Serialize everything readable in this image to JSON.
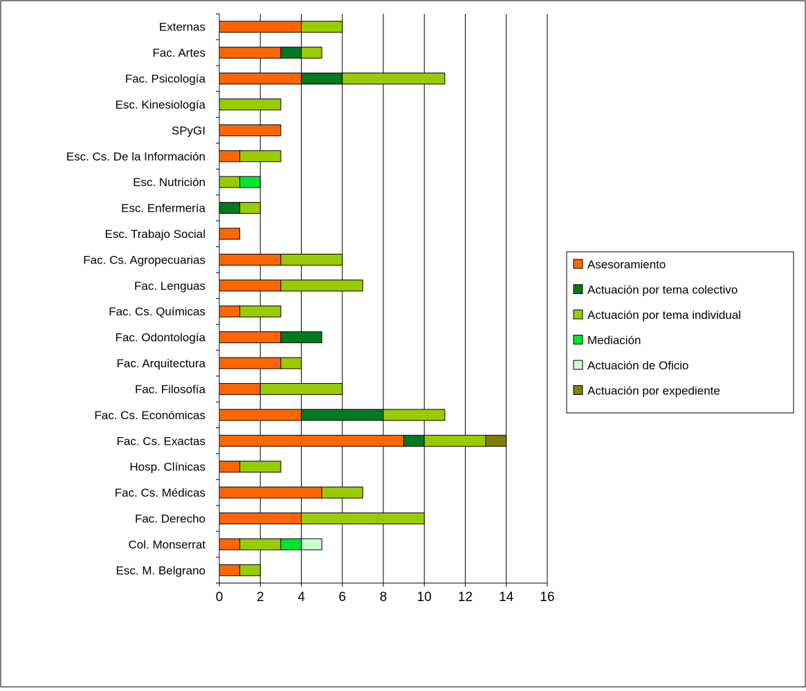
{
  "chart_data": {
    "type": "bar",
    "orientation": "horizontal",
    "stacked": true,
    "title": "",
    "xlabel": "",
    "ylabel": "",
    "xlim": [
      0,
      16
    ],
    "x_ticks": [
      0,
      2,
      4,
      6,
      8,
      10,
      12,
      14,
      16
    ],
    "grid": "vertical-major",
    "legend_position": "right",
    "categories": [
      "Externas",
      "Fac. Artes",
      "Fac. Psicología",
      "Esc. Kinesiología",
      "SPyGI",
      "Esc. Cs. De la Información",
      "Esc. Nutrición",
      "Esc. Enfermería",
      "Esc. Trabajo Social",
      "Fac. Cs. Agropecuarias",
      "Fac. Lenguas",
      "Fac. Cs. Químicas",
      "Fac. Odontología",
      "Fac. Arquitectura",
      "Fac. Filosofía",
      "Fac. Cs. Económicas",
      "Fac. Cs. Exactas",
      "Hosp. Clínicas",
      "Fac. Cs. Médicas",
      "Fac. Derecho",
      "Col. Monserrat",
      "Esc. M. Belgrano"
    ],
    "series": [
      {
        "name": "Asesoramiento",
        "color": "#FF6600",
        "values": [
          4,
          3,
          4,
          0,
          3,
          1,
          0,
          0,
          1,
          3,
          3,
          1,
          3,
          3,
          2,
          4,
          9,
          1,
          5,
          4,
          1,
          1
        ]
      },
      {
        "name": "Actuación por tema colectivo",
        "color": "#007A1E",
        "values": [
          0,
          1,
          2,
          0,
          0,
          0,
          0,
          1,
          0,
          0,
          0,
          0,
          2,
          0,
          0,
          4,
          1,
          0,
          0,
          0,
          0,
          0
        ]
      },
      {
        "name": "Actuación por tema individual",
        "color": "#99CC00",
        "values": [
          2,
          1,
          5,
          3,
          0,
          2,
          1,
          1,
          0,
          3,
          4,
          2,
          0,
          1,
          4,
          3,
          3,
          2,
          2,
          6,
          2,
          1
        ]
      },
      {
        "name": "Mediación",
        "color": "#00E62E",
        "values": [
          0,
          0,
          0,
          0,
          0,
          0,
          1,
          0,
          0,
          0,
          0,
          0,
          0,
          0,
          0,
          0,
          0,
          0,
          0,
          0,
          1,
          0
        ]
      },
      {
        "name": "Actuación de Oficio",
        "color": "#CCFFCC",
        "values": [
          0,
          0,
          0,
          0,
          0,
          0,
          0,
          0,
          0,
          0,
          0,
          0,
          0,
          0,
          0,
          0,
          0,
          0,
          0,
          0,
          1,
          0
        ]
      },
      {
        "name": "Actuación por expediente",
        "color": "#808000",
        "values": [
          0,
          0,
          0,
          0,
          0,
          0,
          0,
          0,
          0,
          0,
          0,
          0,
          0,
          0,
          0,
          0,
          1,
          0,
          0,
          0,
          0,
          0
        ]
      }
    ]
  }
}
